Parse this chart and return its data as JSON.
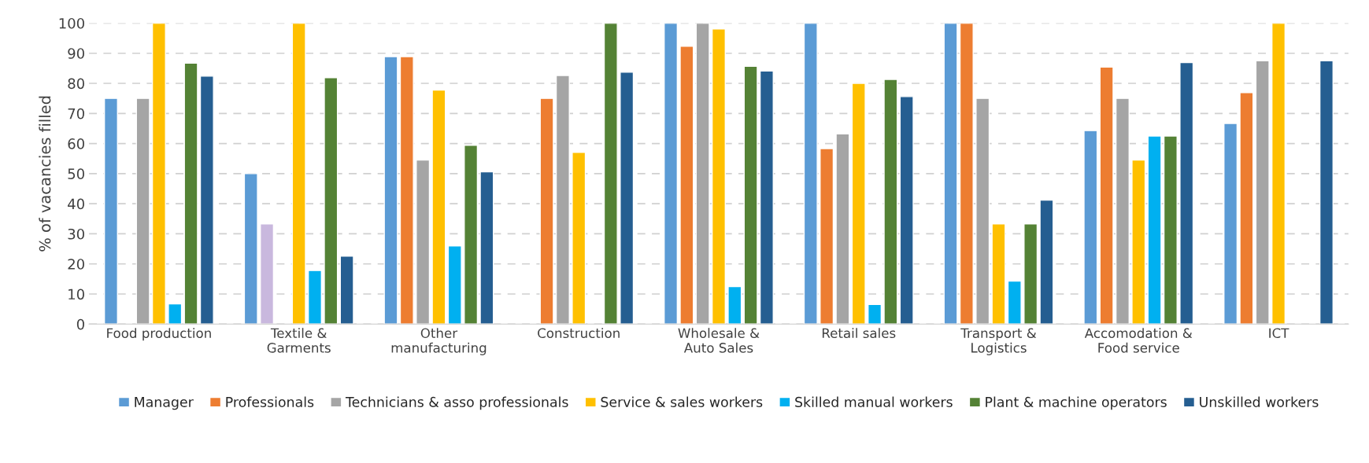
{
  "chart_data": {
    "type": "bar",
    "ylabel": "% of vacancies filled",
    "categories": [
      "Food production",
      "Textile &\nGarments",
      "Other\nmanufacturing",
      "Construction",
      "Wholesale &\nAuto Sales",
      "Retail sales",
      "Transport &\nLogistics",
      "Accomodation &\nFood service",
      "ICT"
    ],
    "series": [
      {
        "name": "Manager",
        "color": "#5b9bd5",
        "values": [
          75,
          50,
          88.9,
          null,
          100,
          100,
          100,
          64.3,
          66.7
        ]
      },
      {
        "name": "Professionals",
        "color": "#ed7d31",
        "colors": [
          "#ed7d31",
          "#c9b8de",
          "#ed7d31",
          "#ed7d31",
          "#ed7d31",
          "#ed7d31",
          "#ed7d31",
          "#ed7d31",
          "#ed7d31"
        ],
        "values": [
          null,
          33.3,
          88.9,
          75,
          92.3,
          58.3,
          100,
          85.4,
          76.9
        ]
      },
      {
        "name": "Technicians & asso professionals",
        "color": "#a5a5a5",
        "values": [
          75,
          null,
          54.5,
          82.6,
          100,
          63.2,
          75,
          75,
          87.5
        ]
      },
      {
        "name": "Service & sales workers",
        "color": "#ffc000",
        "values": [
          100,
          100,
          77.8,
          57.1,
          98.1,
          80,
          33.3,
          54.5,
          100
        ]
      },
      {
        "name": "Skilled manual workers",
        "color": "#00b0f0",
        "values": [
          6.7,
          17.8,
          26,
          null,
          12.5,
          6.5,
          14.3,
          62.5,
          null
        ]
      },
      {
        "name": "Plant & machine operators",
        "color": "#548235",
        "values": [
          86.7,
          81.9,
          59.4,
          100,
          85.7,
          81.3,
          33.3,
          62.5,
          null
        ]
      },
      {
        "name": "Unskilled workers",
        "color": "#255e91",
        "values": [
          82.4,
          22.6,
          50.6,
          83.7,
          84.1,
          75.6,
          41.2,
          86.9,
          87.5
        ]
      }
    ],
    "ylim": [
      0,
      100
    ],
    "yticks": [
      0,
      10,
      20,
      30,
      40,
      50,
      60,
      70,
      80,
      90,
      100
    ],
    "grid": "y",
    "legend": "bottom"
  }
}
